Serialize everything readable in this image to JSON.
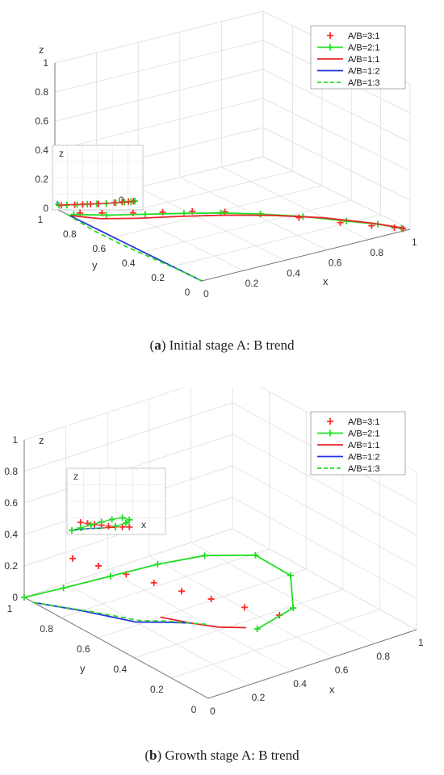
{
  "chart_data": [
    {
      "panel_label": "a",
      "type": "line",
      "projection": "3d",
      "caption": "Initial stage A: B trend",
      "xlabel": "x",
      "ylabel": "y",
      "zlabel": "z",
      "xlim": [
        0,
        1
      ],
      "ylim": [
        0,
        1
      ],
      "zlim": [
        0,
        1
      ],
      "x_ticks": [
        "0",
        "0.2",
        "0.4",
        "0.6",
        "0.8",
        "1"
      ],
      "y_ticks": [
        "0",
        "0.2",
        "0.4",
        "0.6",
        "0.8",
        "1"
      ],
      "z_ticks": [
        "0",
        "0.2",
        "0.4",
        "0.6",
        "0.8",
        "1"
      ],
      "inset_label": "z",
      "inset_tick": "0",
      "grid": true,
      "legend_position": "top-right",
      "series": [
        {
          "name": "A/B=3:1",
          "style": "markers-plus",
          "color": "#ff2a2a",
          "points": [
            [
              0.05,
              0.9,
              0.0
            ],
            [
              0.12,
              0.85,
              0.0
            ],
            [
              0.22,
              0.78,
              0.0
            ],
            [
              0.32,
              0.72,
              0.0
            ],
            [
              0.42,
              0.66,
              0.0
            ],
            [
              0.52,
              0.58,
              0.0
            ],
            [
              0.62,
              0.48,
              0.0
            ],
            [
              0.72,
              0.36,
              0.0
            ],
            [
              0.82,
              0.22,
              0.0
            ],
            [
              0.9,
              0.12,
              0.0
            ],
            [
              0.96,
              0.05,
              0.0
            ],
            [
              0.98,
              0.02,
              0.0
            ]
          ]
        },
        {
          "name": "A/B=2:1",
          "style": "line-plus",
          "color": "#22dd22",
          "points": [
            [
              0.02,
              0.9,
              0.0
            ],
            [
              0.12,
              0.82,
              0.0
            ],
            [
              0.25,
              0.74,
              0.0
            ],
            [
              0.38,
              0.66,
              0.0
            ],
            [
              0.5,
              0.58,
              0.0
            ],
            [
              0.62,
              0.48,
              0.0
            ],
            [
              0.74,
              0.36,
              0.0
            ],
            [
              0.85,
              0.22,
              0.0
            ],
            [
              0.93,
              0.12,
              0.0
            ],
            [
              0.98,
              0.03,
              0.0
            ]
          ]
        },
        {
          "name": "A/B=1:1",
          "style": "line",
          "color": "#e8262a",
          "points": [
            [
              0.0,
              0.9,
              0.0
            ],
            [
              0.08,
              0.8,
              0.0
            ],
            [
              0.2,
              0.72,
              0.0
            ],
            [
              0.35,
              0.64,
              0.0
            ],
            [
              0.5,
              0.55,
              0.0
            ],
            [
              0.65,
              0.44,
              0.0
            ],
            [
              0.8,
              0.3,
              0.0
            ],
            [
              0.92,
              0.14,
              0.0
            ],
            [
              0.99,
              0.02,
              0.0
            ]
          ]
        },
        {
          "name": "A/B=1:2",
          "style": "line",
          "color": "#2233dd",
          "points": [
            [
              0.0,
              0.9,
              0.0
            ],
            [
              0.0,
              0.75,
              0.0
            ],
            [
              0.0,
              0.55,
              0.0
            ],
            [
              0.0,
              0.35,
              0.0
            ],
            [
              0.0,
              0.15,
              0.0
            ],
            [
              0.0,
              0.0,
              0.0
            ]
          ]
        },
        {
          "name": "A/B=1:3",
          "style": "dashed",
          "color": "#22dd22",
          "points": [
            [
              0.0,
              0.92,
              0.0
            ],
            [
              -0.02,
              0.7,
              0.0
            ],
            [
              -0.02,
              0.5,
              0.0
            ],
            [
              -0.01,
              0.3,
              0.0
            ],
            [
              0.0,
              0.1,
              0.0
            ],
            [
              0.0,
              0.0,
              0.0
            ]
          ]
        }
      ]
    },
    {
      "panel_label": "b",
      "type": "line",
      "projection": "3d",
      "caption": "Growth stage A: B trend",
      "xlabel": "x",
      "ylabel": "y",
      "zlabel": "z",
      "xlim": [
        0,
        1
      ],
      "ylim": [
        0,
        1
      ],
      "zlim": [
        0,
        1
      ],
      "x_ticks": [
        "0",
        "0.2",
        "0.4",
        "0.6",
        "0.8",
        "1"
      ],
      "y_ticks": [
        "0",
        "0.2",
        "0.4",
        "0.6",
        "0.8",
        "1"
      ],
      "z_ticks": [
        "0",
        "0.2",
        "0.4",
        "0.6",
        "0.8",
        "1"
      ],
      "inset_label": "z",
      "inset_tick": "x",
      "grid": true,
      "legend_position": "top-right",
      "series": [
        {
          "name": "A/B=3:1",
          "style": "markers-plus",
          "color": "#ff2a2a",
          "points": [
            [
              0.1,
              0.85,
              0.3
            ],
            [
              0.18,
              0.8,
              0.25
            ],
            [
              0.26,
              0.74,
              0.2
            ],
            [
              0.34,
              0.68,
              0.15
            ],
            [
              0.42,
              0.62,
              0.1
            ],
            [
              0.5,
              0.55,
              0.06
            ],
            [
              0.58,
              0.46,
              0.03
            ],
            [
              0.66,
              0.36,
              0.01
            ]
          ]
        },
        {
          "name": "A/B=2:1",
          "style": "line-plus",
          "color": "#22dd22",
          "points": [
            [
              0.0,
              1.0,
              0.0
            ],
            [
              0.1,
              0.9,
              0.08
            ],
            [
              0.22,
              0.78,
              0.18
            ],
            [
              0.34,
              0.66,
              0.28
            ],
            [
              0.46,
              0.54,
              0.36
            ],
            [
              0.58,
              0.4,
              0.4
            ],
            [
              0.66,
              0.3,
              0.3
            ],
            [
              0.62,
              0.24,
              0.15
            ],
            [
              0.5,
              0.3,
              0.03
            ]
          ]
        },
        {
          "name": "A/B=1:1",
          "style": "line",
          "color": "#e8262a",
          "points": [
            [
              0.3,
              0.6,
              0.0
            ],
            [
              0.36,
              0.5,
              0.0
            ],
            [
              0.42,
              0.42,
              0.0
            ],
            [
              0.5,
              0.36,
              0.0
            ]
          ]
        },
        {
          "name": "A/B=1:2",
          "style": "line",
          "color": "#2233dd",
          "points": [
            [
              0.0,
              0.95,
              0.0
            ],
            [
              0.1,
              0.8,
              0.0
            ],
            [
              0.2,
              0.62,
              0.0
            ],
            [
              0.3,
              0.55,
              0.0
            ],
            [
              0.36,
              0.5,
              0.0
            ]
          ]
        },
        {
          "name": "A/B=1:3",
          "style": "dashed",
          "color": "#22dd22",
          "points": [
            [
              0.0,
              0.95,
              0.0
            ],
            [
              0.12,
              0.78,
              0.0
            ],
            [
              0.22,
              0.62,
              0.0
            ],
            [
              0.3,
              0.56,
              0.0
            ],
            [
              0.4,
              0.46,
              0.0
            ]
          ]
        }
      ]
    }
  ]
}
